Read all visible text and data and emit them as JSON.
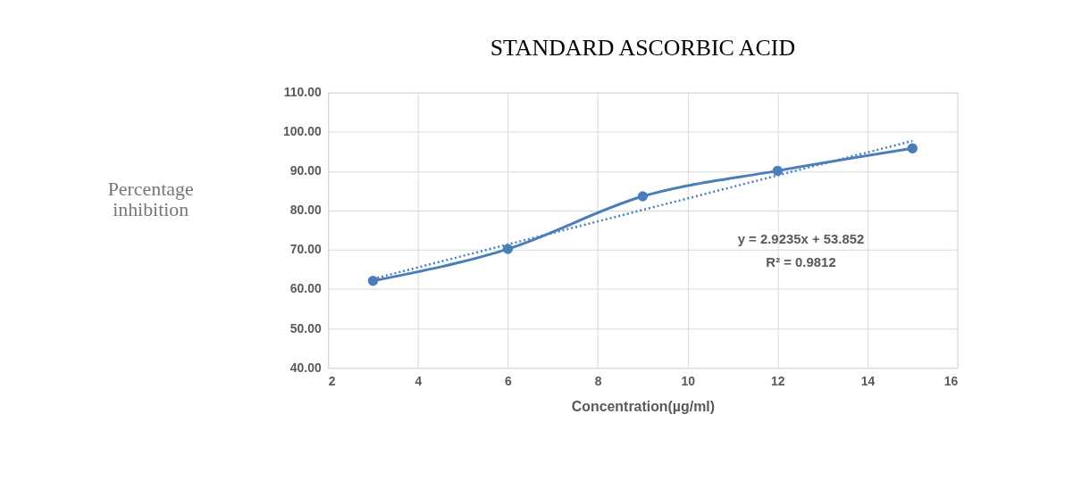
{
  "chart_data": {
    "type": "line",
    "title": "STANDARD ASCORBIC ACID",
    "xlabel": "Concentration(µg/ml)",
    "ylabel": "Percentage inhibition",
    "x": [
      3,
      6,
      9,
      12,
      15
    ],
    "series": [
      {
        "color": "#4a7ebb",
        "values": [
          62.1,
          70.2,
          83.6,
          90.1,
          95.8
        ],
        "marker": "circle",
        "line_style": "solid"
      },
      {
        "type": "line",
        "color": "#4a7ebb",
        "x": [
          3,
          15
        ],
        "values": [
          62.6,
          97.7
        ],
        "marker": "none",
        "line_style": "dotted"
      }
    ],
    "annotations": [
      "y = 2.9235x + 53.852",
      "R² = 0.9812"
    ],
    "xlim": [
      2,
      16
    ],
    "xticks": [
      2,
      4,
      6,
      8,
      10,
      12,
      14,
      16
    ],
    "ylim": [
      40,
      110
    ],
    "yticks": [
      {
        "value": 40,
        "label": "40.00"
      },
      {
        "value": 50,
        "label": "50.00"
      },
      {
        "value": 60,
        "label": "60.00"
      },
      {
        "value": 70,
        "label": "70.00"
      },
      {
        "value": 80,
        "label": "80.00"
      },
      {
        "value": 90,
        "label": "90.00"
      },
      {
        "value": 100,
        "label": "100.00"
      },
      {
        "value": 110,
        "label": "110.00"
      }
    ],
    "grid": true
  }
}
